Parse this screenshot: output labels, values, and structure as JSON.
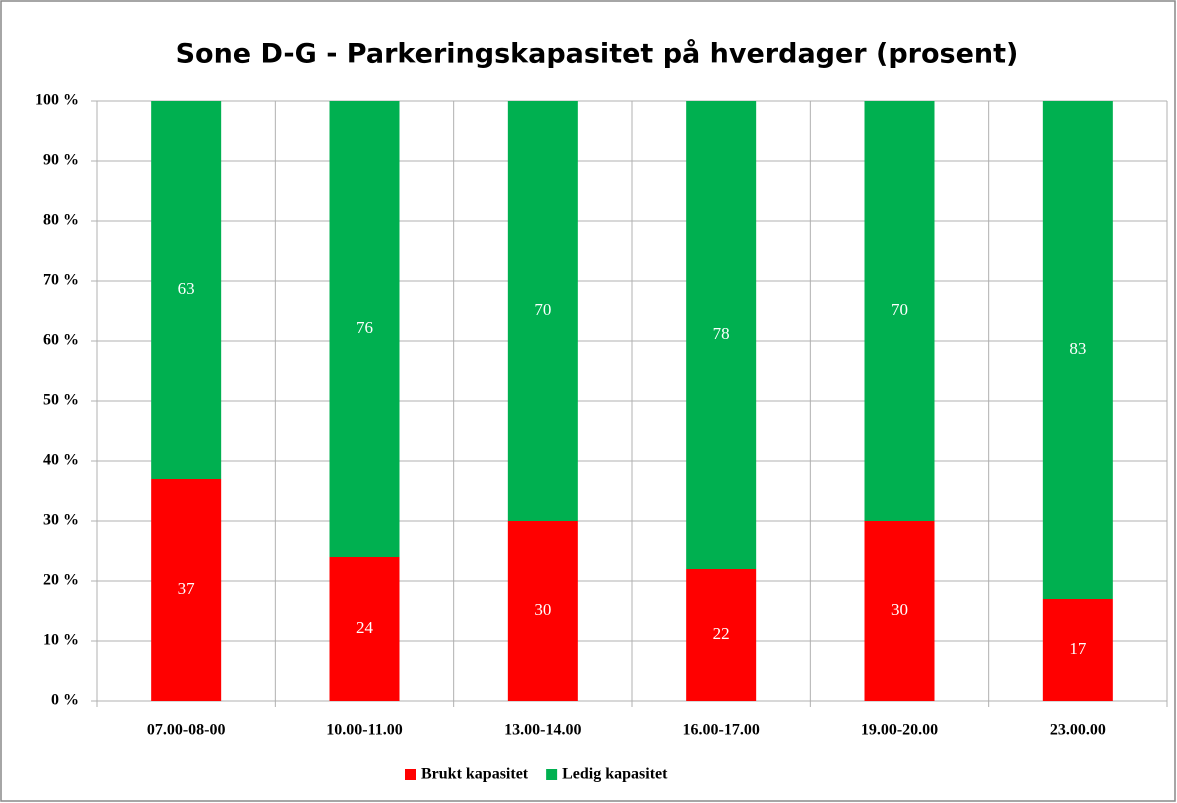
{
  "chart_data": {
    "type": "stacked_bar",
    "title": "Sone D-G - Parkeringskapasitet på hverdager (prosent)",
    "categories": [
      "07.00-08-00",
      "10.00-11.00",
      "13.00-14.00",
      "16.00-17.00",
      "19.00-20.00",
      "23.00.00"
    ],
    "series": [
      {
        "name": "Brukt kapasitet",
        "color": "#ff0000",
        "values": [
          37,
          24,
          30,
          22,
          30,
          17
        ]
      },
      {
        "name": "Ledig kapasitet",
        "color": "#00b050",
        "values": [
          63,
          76,
          70,
          78,
          70,
          83
        ]
      }
    ],
    "ylim": [
      0,
      100
    ],
    "yticks": [
      {
        "value": 0,
        "label": "0 %"
      },
      {
        "value": 10,
        "label": "10 %"
      },
      {
        "value": 20,
        "label": "20 %"
      },
      {
        "value": 30,
        "label": "30 %"
      },
      {
        "value": 40,
        "label": "40 %"
      },
      {
        "value": 50,
        "label": "50 %"
      },
      {
        "value": 60,
        "label": "60 %"
      },
      {
        "value": 70,
        "label": "70 %"
      },
      {
        "value": 80,
        "label": "80 %"
      },
      {
        "value": 90,
        "label": "90 %"
      },
      {
        "value": 100,
        "label": "100 %"
      }
    ],
    "grid": true,
    "legend": "bottom"
  }
}
